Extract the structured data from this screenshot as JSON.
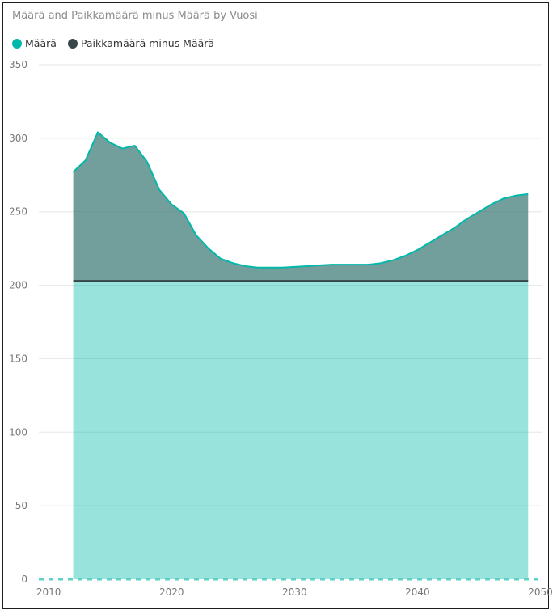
{
  "chart_data": {
    "type": "area",
    "title": "Määrä and Paikkamäärä minus Määrä by Vuosi",
    "xlabel": "",
    "ylabel": "",
    "xlim": [
      2009.2,
      2050.1
    ],
    "ylim": [
      0,
      350
    ],
    "x_ticks": [
      "2010",
      "2020",
      "2030",
      "2040",
      "2050"
    ],
    "y_ticks": [
      "350",
      "300",
      "250",
      "200",
      "150",
      "100",
      "50",
      "0"
    ],
    "grid": true,
    "legend_position": "top-left",
    "x": [
      2012,
      2013,
      2014,
      2015,
      2016,
      2017,
      2018,
      2019,
      2020,
      2021,
      2022,
      2023,
      2024,
      2025,
      2026,
      2027,
      2028,
      2029,
      2030,
      2031,
      2032,
      2033,
      2034,
      2035,
      2036,
      2037,
      2038,
      2039,
      2040,
      2041,
      2042,
      2043,
      2044,
      2045,
      2046,
      2047,
      2048,
      2049
    ],
    "series": [
      {
        "name": "Määrä",
        "color": "#01B8AA",
        "values": [
          203,
          203,
          203,
          203,
          203,
          203,
          203,
          203,
          203,
          203,
          203,
          203,
          203,
          203,
          203,
          203,
          203,
          203,
          203,
          203,
          203,
          203,
          203,
          203,
          203,
          203,
          203,
          203,
          203,
          203,
          203,
          203,
          203,
          203,
          203,
          203,
          203,
          203
        ]
      },
      {
        "name": "Paikkamäärä minus Määrä",
        "color": "#374649",
        "values": [
          74,
          82,
          101,
          94,
          90,
          92,
          81,
          62,
          52,
          46,
          31,
          22,
          15,
          12,
          10,
          9,
          9,
          9,
          9.5,
          10,
          10.5,
          11,
          11,
          11,
          11,
          12,
          14,
          17,
          21,
          26,
          31,
          36,
          42,
          47,
          52,
          56,
          58,
          59
        ]
      }
    ]
  }
}
